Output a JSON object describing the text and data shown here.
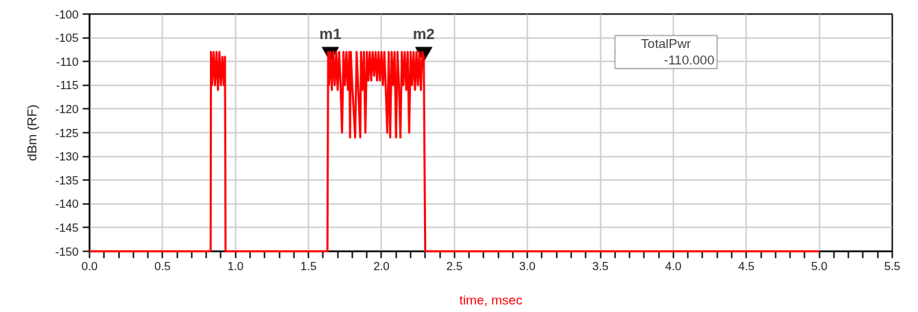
{
  "chart_data": {
    "type": "line",
    "xlabel": "time, msec",
    "ylabel": "dBm (RF)",
    "xlim": [
      0,
      5.5
    ],
    "ylim": [
      -150,
      -100
    ],
    "xticks": [
      {
        "value": 0,
        "label": "0.0"
      },
      {
        "value": 0.1,
        "label": null
      },
      {
        "value": 0.2,
        "label": null
      },
      {
        "value": 0.3,
        "label": null
      },
      {
        "value": 0.4,
        "label": null
      },
      {
        "value": 0.5,
        "label": "0.5"
      },
      {
        "value": 0.6,
        "label": null
      },
      {
        "value": 0.7,
        "label": null
      },
      {
        "value": 0.8,
        "label": null
      },
      {
        "value": 0.9,
        "label": null
      },
      {
        "value": 1,
        "label": "1.0"
      },
      {
        "value": 1.1,
        "label": null
      },
      {
        "value": 1.2,
        "label": null
      },
      {
        "value": 1.3,
        "label": null
      },
      {
        "value": 1.4,
        "label": null
      },
      {
        "value": 1.5,
        "label": "1.5"
      },
      {
        "value": 1.6,
        "label": null
      },
      {
        "value": 1.7,
        "label": null
      },
      {
        "value": 1.8,
        "label": null
      },
      {
        "value": 1.9,
        "label": null
      },
      {
        "value": 2,
        "label": "2.0"
      },
      {
        "value": 2.1,
        "label": null
      },
      {
        "value": 2.2,
        "label": null
      },
      {
        "value": 2.3,
        "label": null
      },
      {
        "value": 2.4,
        "label": null
      },
      {
        "value": 2.5,
        "label": "2.5"
      },
      {
        "value": 2.6,
        "label": null
      },
      {
        "value": 2.7,
        "label": null
      },
      {
        "value": 2.8,
        "label": null
      },
      {
        "value": 2.9,
        "label": null
      },
      {
        "value": 3,
        "label": "3.0"
      },
      {
        "value": 3.1,
        "label": null
      },
      {
        "value": 3.2,
        "label": null
      },
      {
        "value": 3.3,
        "label": null
      },
      {
        "value": 3.4,
        "label": null
      },
      {
        "value": 3.5,
        "label": "3.5"
      },
      {
        "value": 3.6,
        "label": null
      },
      {
        "value": 3.7,
        "label": null
      },
      {
        "value": 3.8,
        "label": null
      },
      {
        "value": 3.9,
        "label": null
      },
      {
        "value": 4,
        "label": "4.0"
      },
      {
        "value": 4.1,
        "label": null
      },
      {
        "value": 4.2,
        "label": null
      },
      {
        "value": 4.3,
        "label": null
      },
      {
        "value": 4.4,
        "label": null
      },
      {
        "value": 4.5,
        "label": "4.5"
      },
      {
        "value": 4.6,
        "label": null
      },
      {
        "value": 4.7,
        "label": null
      },
      {
        "value": 4.8,
        "label": null
      },
      {
        "value": 4.9,
        "label": null
      },
      {
        "value": 5,
        "label": "5.0"
      },
      {
        "value": 5.1,
        "label": null
      },
      {
        "value": 5.2,
        "label": null
      },
      {
        "value": 5.3,
        "label": null
      },
      {
        "value": 5.4,
        "label": null
      },
      {
        "value": 5.5,
        "label": "5.5"
      }
    ],
    "yticks": [
      -150,
      -145,
      -140,
      -135,
      -130,
      -125,
      -120,
      -115,
      -110,
      -105,
      -100
    ],
    "grid": true,
    "marker": "none",
    "line_style": "solid",
    "annotations": [
      {
        "text": "m1",
        "x": 1.65,
        "y": -108
      },
      {
        "text": "m2",
        "x": 2.29,
        "y": -108
      },
      "TotalPwr",
      "-110.000"
    ],
    "series": [
      {
        "color": "#ff0000",
        "x": [
          0,
          0.83,
          0.832,
          0.84,
          0.85,
          0.86,
          0.87,
          0.88,
          0.89,
          0.9,
          0.91,
          0.92,
          0.928,
          0.932,
          1.63,
          1.635,
          1.64,
          1.65,
          1.66,
          1.67,
          1.68,
          1.69,
          1.7,
          1.71,
          1.72,
          1.73,
          1.74,
          1.75,
          1.76,
          1.77,
          1.78,
          1.785,
          1.79,
          1.8,
          1.82,
          1.83,
          1.84,
          1.855,
          1.86,
          1.87,
          1.88,
          1.89,
          1.9,
          1.91,
          1.92,
          1.93,
          1.94,
          1.95,
          1.96,
          1.97,
          1.98,
          1.99,
          2.0,
          2.01,
          2.02,
          2.03,
          2.04,
          2.05,
          2.06,
          2.07,
          2.08,
          2.09,
          2.1,
          2.11,
          2.12,
          2.13,
          2.14,
          2.15,
          2.16,
          2.17,
          2.18,
          2.19,
          2.2,
          2.21,
          2.22,
          2.23,
          2.24,
          2.25,
          2.26,
          2.27,
          2.28,
          2.29,
          2.295,
          2.3,
          5.0
        ],
        "values": [
          -150,
          -150,
          -108,
          -115,
          -108,
          -115,
          -108,
          -116,
          -108,
          -115,
          -109,
          -115,
          -109,
          -150,
          -150,
          -108,
          -115,
          -108,
          -116,
          -108,
          -115,
          -108,
          -116,
          -108,
          -115,
          -125,
          -108,
          -115,
          -108,
          -116,
          -108,
          -126,
          -108,
          -115,
          -126,
          -108,
          -115,
          -126,
          -108,
          -116,
          -108,
          -125,
          -108,
          -114,
          -108,
          -114,
          -108,
          -113,
          -108,
          -114,
          -108,
          -114,
          -108,
          -115,
          -108,
          -116,
          -125,
          -108,
          -126,
          -108,
          -115,
          -108,
          -126,
          -108,
          -115,
          -126,
          -108,
          -115,
          -108,
          -116,
          -108,
          -125,
          -108,
          -115,
          -108,
          -116,
          -108,
          -115,
          -108,
          -116,
          -108,
          -109,
          -130,
          -150,
          -150
        ]
      }
    ]
  }
}
